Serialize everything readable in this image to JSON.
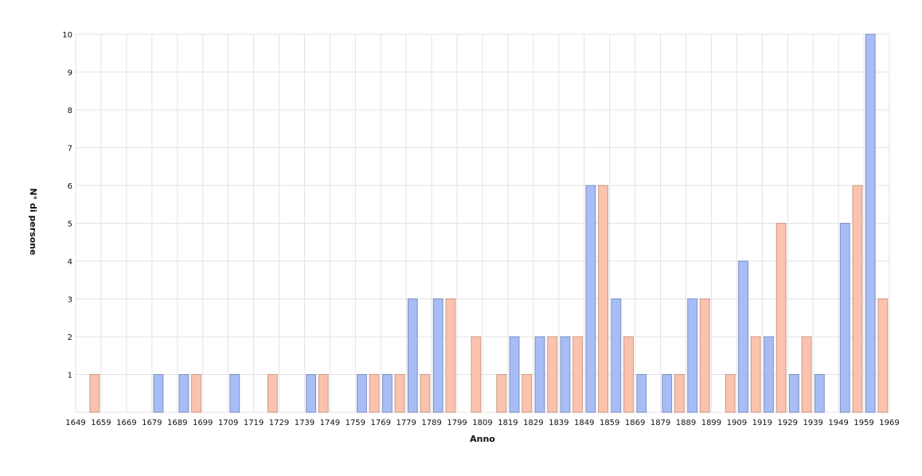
{
  "chart_data": {
    "type": "bar",
    "title": "",
    "xlabel": "Anno",
    "ylabel": "N° di persone",
    "x_tick_labels": [
      "1649",
      "1659",
      "1669",
      "1679",
      "1689",
      "1699",
      "1709",
      "1719",
      "1729",
      "1739",
      "1749",
      "1759",
      "1769",
      "1779",
      "1789",
      "1799",
      "1809",
      "1819",
      "1829",
      "1839",
      "1849",
      "1859",
      "1869",
      "1879",
      "1889",
      "1899",
      "1909",
      "1919",
      "1929",
      "1939",
      "1949",
      "1959",
      "1969"
    ],
    "y_tick_labels": [
      "1",
      "2",
      "3",
      "4",
      "5",
      "6",
      "7",
      "8",
      "9",
      "10"
    ],
    "xlim": [
      1649,
      1969
    ],
    "ylim": [
      0,
      10
    ],
    "grid": true,
    "legend": "none",
    "colors": {
      "series_a_fill": "#a8bdf5",
      "series_a_stroke": "#7f8fc0",
      "series_b_fill": "#fbc2ae",
      "series_b_stroke": "#c89a8a",
      "grid": "#e3e3e3",
      "text": "#111111"
    },
    "series": [
      {
        "points": [
          {
            "x": 1684,
            "y": 1
          },
          {
            "x": 1694,
            "y": 1
          },
          {
            "x": 1714,
            "y": 1
          },
          {
            "x": 1744,
            "y": 1
          },
          {
            "x": 1764,
            "y": 1
          },
          {
            "x": 1774,
            "y": 1
          },
          {
            "x": 1784,
            "y": 3
          },
          {
            "x": 1794,
            "y": 3
          },
          {
            "x": 1824,
            "y": 2
          },
          {
            "x": 1834,
            "y": 2
          },
          {
            "x": 1844,
            "y": 2
          },
          {
            "x": 1854,
            "y": 6
          },
          {
            "x": 1864,
            "y": 3
          },
          {
            "x": 1874,
            "y": 1
          },
          {
            "x": 1884,
            "y": 1
          },
          {
            "x": 1894,
            "y": 3
          },
          {
            "x": 1914,
            "y": 4
          },
          {
            "x": 1924,
            "y": 2
          },
          {
            "x": 1934,
            "y": 1
          },
          {
            "x": 1944,
            "y": 1
          },
          {
            "x": 1954,
            "y": 5
          },
          {
            "x": 1964,
            "y": 10
          }
        ]
      },
      {
        "points": [
          {
            "x": 1654,
            "y": 1
          },
          {
            "x": 1694,
            "y": 1
          },
          {
            "x": 1724,
            "y": 1
          },
          {
            "x": 1744,
            "y": 1
          },
          {
            "x": 1764,
            "y": 1
          },
          {
            "x": 1774,
            "y": 1
          },
          {
            "x": 1784,
            "y": 1
          },
          {
            "x": 1794,
            "y": 3
          },
          {
            "x": 1804,
            "y": 2
          },
          {
            "x": 1814,
            "y": 1
          },
          {
            "x": 1824,
            "y": 1
          },
          {
            "x": 1834,
            "y": 2
          },
          {
            "x": 1844,
            "y": 2
          },
          {
            "x": 1854,
            "y": 6
          },
          {
            "x": 1864,
            "y": 2
          },
          {
            "x": 1884,
            "y": 1
          },
          {
            "x": 1894,
            "y": 3
          },
          {
            "x": 1904,
            "y": 1
          },
          {
            "x": 1914,
            "y": 2
          },
          {
            "x": 1924,
            "y": 5
          },
          {
            "x": 1934,
            "y": 2
          },
          {
            "x": 1954,
            "y": 6
          },
          {
            "x": 1964,
            "y": 3
          }
        ]
      }
    ]
  }
}
